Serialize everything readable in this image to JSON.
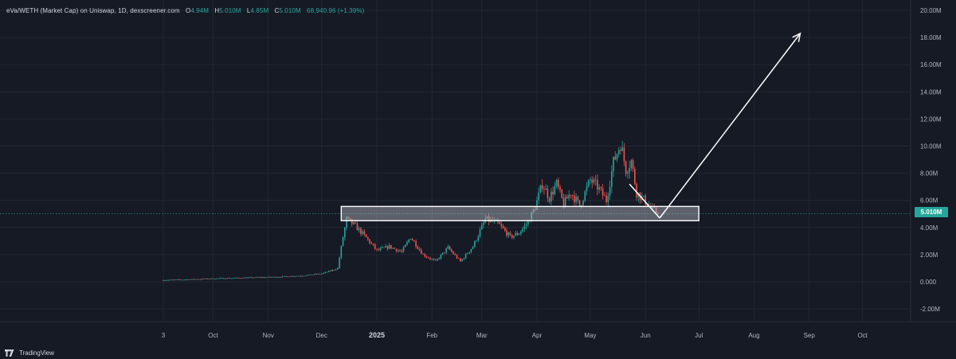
{
  "legend": {
    "symbol": "eVa/WETH (Market Cap) on Uniswap, 1D, dexscreener.com",
    "o_label": "O",
    "o_value": "4.94M",
    "h_label": "H",
    "h_value": "5.010M",
    "l_label": "L",
    "l_value": "4.85M",
    "c_label": "C",
    "c_value": "5.010M",
    "change": "68,940.96 (+1.39%)"
  },
  "last_price_label": "5.010M",
  "brand": {
    "name": "TradingView"
  },
  "colors": {
    "background": "#161a25",
    "grid": "#232734",
    "up": "#26a69a",
    "down": "#ef5350",
    "annotation": "#ffffff"
  },
  "chart_data": {
    "type": "candlestick",
    "y_axis": {
      "min": -2,
      "max": 20,
      "unit": "M",
      "tick_labels": [
        "-2.00M",
        "0.000",
        "2.00M",
        "4.00M",
        "6.00M",
        "8.00M",
        "10.00M",
        "12.00M",
        "14.00M",
        "16.00M",
        "18.00M",
        "20.00M"
      ]
    },
    "x_axis": {
      "tick_labels": [
        "3",
        "Oct",
        "Nov",
        "Dec",
        "2025",
        "Feb",
        "Mar",
        "Apr",
        "May",
        "Jun",
        "Jul",
        "Aug",
        "Sep",
        "Oct"
      ]
    },
    "grid": true,
    "last_price": 5.01,
    "price_path": [
      [
        "2024-09-03",
        0.12
      ],
      [
        "2024-09-20",
        0.18
      ],
      [
        "2024-10-05",
        0.25
      ],
      [
        "2024-10-20",
        0.3
      ],
      [
        "2024-11-05",
        0.35
      ],
      [
        "2024-11-20",
        0.45
      ],
      [
        "2024-12-01",
        0.6
      ],
      [
        "2024-12-08",
        0.9
      ],
      [
        "2024-12-10",
        1.0
      ],
      [
        "2024-12-13",
        3.3
      ],
      [
        "2024-12-15",
        4.6
      ],
      [
        "2024-12-20",
        4.1
      ],
      [
        "2024-12-25",
        3.4
      ],
      [
        "2025-01-01",
        2.3
      ],
      [
        "2025-01-08",
        2.6
      ],
      [
        "2025-01-15",
        2.2
      ],
      [
        "2025-01-20",
        3.3
      ],
      [
        "2025-01-27",
        2.0
      ],
      [
        "2025-02-03",
        1.5
      ],
      [
        "2025-02-10",
        2.5
      ],
      [
        "2025-02-17",
        1.5
      ],
      [
        "2025-02-24",
        2.6
      ],
      [
        "2025-03-03",
        4.6
      ],
      [
        "2025-03-10",
        4.3
      ],
      [
        "2025-03-17",
        3.3
      ],
      [
        "2025-03-22",
        3.6
      ],
      [
        "2025-03-27",
        4.4
      ],
      [
        "2025-03-31",
        5.5
      ],
      [
        "2025-04-04",
        7.2
      ],
      [
        "2025-04-08",
        6.2
      ],
      [
        "2025-04-12",
        7.2
      ],
      [
        "2025-04-16",
        5.7
      ],
      [
        "2025-04-20",
        6.6
      ],
      [
        "2025-04-25",
        5.6
      ],
      [
        "2025-05-01",
        7.5
      ],
      [
        "2025-05-05",
        7.0
      ],
      [
        "2025-05-10",
        6.0
      ],
      [
        "2025-05-14",
        8.8
      ],
      [
        "2025-05-18",
        10.2
      ],
      [
        "2025-05-21",
        8.3
      ],
      [
        "2025-05-24",
        8.9
      ],
      [
        "2025-05-27",
        6.6
      ],
      [
        "2025-06-01",
        5.9
      ],
      [
        "2025-06-05",
        5.3
      ],
      [
        "2025-06-08",
        5.0
      ]
    ]
  }
}
